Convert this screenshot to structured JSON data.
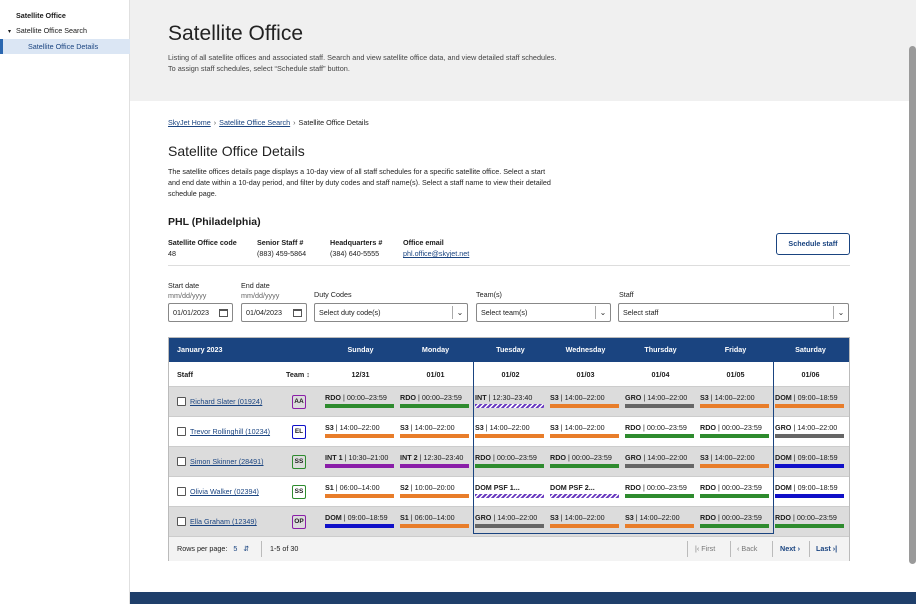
{
  "sidebar": {
    "root": "Satellite Office",
    "search": "Satellite Office Search",
    "details": "Satellite Office Details"
  },
  "hero": {
    "title": "Satellite Office",
    "description": "Listing of all satellite offices and associated staff.  Search and view satellite office data, and view detailed staff schedules. To assign staff schedules, select “Schedule staff” button."
  },
  "breadcrumb": [
    "SkyJet Home",
    "Satellite Office Search",
    "Satellite Office Details"
  ],
  "section": {
    "title": "Satellite Office Details",
    "description": "The satellite offices details page displays a 10-day view of all staff schedules for a specific satellite office. Select a start and end date within a 10-day period, and filter by duty codes and staff name(s). Select a staff name to view their detailed schedule page."
  },
  "office": {
    "name": "PHL (Philadelphia)",
    "code_label": "Satellite Office code",
    "code": "48",
    "senior_label": "Senior Staff #",
    "senior": "(883) 459-5864",
    "hq_label": "Headquarters #",
    "hq": "(384) 640-5555",
    "email_label": "Office email",
    "email": "phl.office@skyjet.net",
    "schedule_button": "Schedule staff"
  },
  "filters": {
    "start_label": "Start date",
    "end_label": "End date",
    "date_hint": "mm/dd/yyyy",
    "start_value": "01/01/2023",
    "end_value": "01/04/2023",
    "duty_label": "Duty Codes",
    "duty_placeholder": "Select duty code(s)",
    "team_label": "Team(s)",
    "team_placeholder": "Select team(s)",
    "staff_label": "Staff",
    "staff_placeholder": "Select staff"
  },
  "grid": {
    "month": "January 2023",
    "staff_header": "Staff",
    "team_header": "Team",
    "sort_icon": "↕",
    "days": [
      "Sunday",
      "Monday",
      "Tuesday",
      "Wednesday",
      "Thursday",
      "Friday",
      "Saturday"
    ],
    "dates": [
      "12/31",
      "01/01",
      "01/02",
      "01/03",
      "01/04",
      "01/05",
      "01/06"
    ],
    "colors": {
      "RDO": "#2e8b2e",
      "S3": "#e87d2a",
      "S1": "#e87d2a",
      "S2": "#e87d2a",
      "GRO": "#666666",
      "DOM": "#1010c8",
      "INT": "#8a1ea8",
      "hatch": "#6a3cc0"
    },
    "rows": [
      {
        "name": "Richard Slater (01924)",
        "team": "AA",
        "team_color": "#8a1ea8",
        "shade": true,
        "cells": [
          {
            "code": "RDO",
            "time": "00:00–23:59",
            "bar": "RDO"
          },
          {
            "code": "RDO",
            "time": "00:00–23:59",
            "bar": "RDO"
          },
          {
            "code": "INT",
            "time": "12:30–23:40",
            "bar": "hatch"
          },
          {
            "code": "S3",
            "time": "14:00–22:00",
            "bar": "S3"
          },
          {
            "code": "GRO",
            "time": "14:00–22:00",
            "bar": "GRO"
          },
          {
            "code": "S3",
            "time": "14:00–22:00",
            "bar": "S3"
          },
          {
            "code": "DOM",
            "time": "09:00–18:59",
            "bar": "S3"
          }
        ]
      },
      {
        "name": "Trevor Rollinghill (10234)",
        "team": "EL",
        "team_color": "#1010c8",
        "shade": false,
        "cells": [
          {
            "code": "S3",
            "time": "14:00–22:00",
            "bar": "S3"
          },
          {
            "code": "S3",
            "time": "14:00–22:00",
            "bar": "S3"
          },
          {
            "code": "S3",
            "time": "14:00–22:00",
            "bar": "S3"
          },
          {
            "code": "S3",
            "time": "14:00–22:00",
            "bar": "S3"
          },
          {
            "code": "RDO",
            "time": "00:00–23:59",
            "bar": "RDO"
          },
          {
            "code": "RDO",
            "time": "00:00–23:59",
            "bar": "RDO"
          },
          {
            "code": "GRO",
            "time": "14:00–22:00",
            "bar": "GRO"
          }
        ]
      },
      {
        "name": "Simon Skinner (28491)",
        "team": "SS",
        "team_color": "#2e8b2e",
        "shade": true,
        "cells": [
          {
            "code": "INT 1",
            "time": "10:30–21:00",
            "bar": "INT"
          },
          {
            "code": "INT 2",
            "time": "12:30–23:40",
            "bar": "INT"
          },
          {
            "code": "RDO",
            "time": "00:00–23:59",
            "bar": "RDO"
          },
          {
            "code": "RDO",
            "time": "00:00–23:59",
            "bar": "RDO"
          },
          {
            "code": "GRO",
            "time": "14:00–22:00",
            "bar": "GRO"
          },
          {
            "code": "S3",
            "time": "14:00–22:00",
            "bar": "S3"
          },
          {
            "code": "DOM",
            "time": "09:00–18:59",
            "bar": "DOM"
          }
        ]
      },
      {
        "name": "Olivia Walker (02394)",
        "team": "SS",
        "team_color": "#2e8b2e",
        "shade": false,
        "cells": [
          {
            "code": "S1",
            "time": "06:00–14:00",
            "bar": "S1"
          },
          {
            "code": "S2",
            "time": "10:00–20:00",
            "bar": "S2"
          },
          {
            "code": "DOM PSF 1...",
            "time": "",
            "bar": "hatch"
          },
          {
            "code": "DOM PSF 2...",
            "time": "",
            "bar": "hatch"
          },
          {
            "code": "RDO",
            "time": "00:00–23:59",
            "bar": "RDO"
          },
          {
            "code": "RDO",
            "time": "00:00–23:59",
            "bar": "RDO"
          },
          {
            "code": "DOM",
            "time": "09:00–18:59",
            "bar": "DOM"
          }
        ]
      },
      {
        "name": "Ella Graham (12349)",
        "team": "OP",
        "team_color": "#8a1ea8",
        "shade": true,
        "cells": [
          {
            "code": "DOM",
            "time": "09:00–18:59",
            "bar": "DOM"
          },
          {
            "code": "S1",
            "time": "06:00–14:00",
            "bar": "S1"
          },
          {
            "code": "GRO",
            "time": "14:00–22:00",
            "bar": "GRO"
          },
          {
            "code": "S3",
            "time": "14:00–22:00",
            "bar": "S3"
          },
          {
            "code": "S3",
            "time": "14:00–22:00",
            "bar": "S3"
          },
          {
            "code": "RDO",
            "time": "00:00–23:59",
            "bar": "RDO"
          },
          {
            "code": "RDO",
            "time": "00:00–23:59",
            "bar": "RDO"
          }
        ]
      }
    ]
  },
  "pagination": {
    "rows_label": "Rows per page:",
    "rows_value": "5",
    "range": "1-5 of 30",
    "first": "First",
    "back": "Back",
    "next": "Next",
    "last": "Last"
  }
}
